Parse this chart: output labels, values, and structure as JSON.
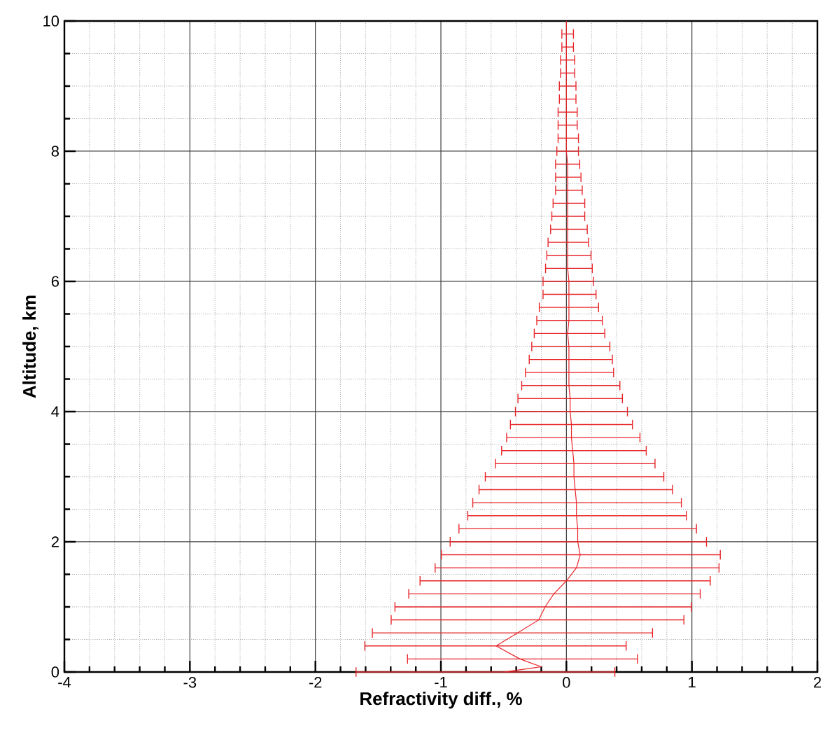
{
  "chart_data": {
    "type": "line",
    "xlabel": "Refractivity diff., %",
    "ylabel": "Altitude, km",
    "xlim": [
      -4,
      2
    ],
    "ylim": [
      0,
      10
    ],
    "xticks": [
      -4,
      -3,
      -2,
      -1,
      0,
      1,
      2
    ],
    "yticks": [
      0,
      2,
      4,
      6,
      8,
      10
    ],
    "grid": true,
    "marker": "none",
    "line_style": "solid",
    "series": [
      {
        "color": "#e8262a",
        "x": [
          -0.49,
          -0.2,
          -0.37,
          -0.56,
          -0.39,
          -0.22,
          -0.17,
          -0.1,
          0.0,
          0.08,
          0.11,
          0.09,
          0.09,
          0.08,
          0.08,
          0.07,
          0.06,
          0.06,
          0.05,
          0.04,
          0.04,
          0.03,
          0.03,
          0.02,
          0.02,
          0.02,
          0.02,
          0.01,
          0.02,
          0.02,
          0.02,
          0.02,
          0.01,
          0.01,
          0.01,
          0.01,
          0.01,
          0.01,
          0.01,
          0.01,
          0.01,
          0.0,
          0.0,
          0.0,
          0.0,
          0.0,
          0.0,
          0.0,
          0.0,
          0.0,
          0.0,
          0.0
        ],
        "values": [
          0,
          0.08,
          0.2,
          0.4,
          0.6,
          0.8,
          1.0,
          1.2,
          1.4,
          1.6,
          1.8,
          2.0,
          2.2,
          2.4,
          2.6,
          2.8,
          3.0,
          3.2,
          3.4,
          3.6,
          3.8,
          4.0,
          4.2,
          4.4,
          4.6,
          4.8,
          5.0,
          5.2,
          5.4,
          5.6,
          5.8,
          6.0,
          6.2,
          6.4,
          6.6,
          6.8,
          7.0,
          7.2,
          7.4,
          7.6,
          7.8,
          8.0,
          8.2,
          8.4,
          8.6,
          8.8,
          9.0,
          9.2,
          9.4,
          9.6,
          9.8,
          10.0
        ],
        "xerrors": [
          [
            -1.68,
            0.39
          ],
          null,
          [
            -1.27,
            0.57
          ],
          [
            -1.61,
            0.48
          ],
          [
            -1.55,
            0.69
          ],
          [
            -1.4,
            0.94
          ],
          [
            -1.37,
            1.0
          ],
          [
            -1.26,
            1.07
          ],
          [
            -1.17,
            1.15
          ],
          [
            -1.05,
            1.22
          ],
          [
            -1.0,
            1.23
          ],
          [
            -0.93,
            1.12
          ],
          [
            -0.86,
            1.04
          ],
          [
            -0.79,
            0.96
          ],
          [
            -0.75,
            0.92
          ],
          [
            -0.7,
            0.85
          ],
          [
            -0.65,
            0.78
          ],
          [
            -0.57,
            0.71
          ],
          [
            -0.52,
            0.64
          ],
          [
            -0.48,
            0.59
          ],
          [
            -0.45,
            0.53
          ],
          [
            -0.41,
            0.49
          ],
          [
            -0.39,
            0.45
          ],
          [
            -0.36,
            0.43
          ],
          [
            -0.33,
            0.38
          ],
          [
            -0.3,
            0.37
          ],
          [
            -0.28,
            0.35
          ],
          [
            -0.26,
            0.31
          ],
          [
            -0.24,
            0.29
          ],
          [
            -0.22,
            0.26
          ],
          [
            -0.19,
            0.24
          ],
          [
            -0.19,
            0.22
          ],
          [
            -0.17,
            0.21
          ],
          [
            -0.16,
            0.2
          ],
          [
            -0.15,
            0.18
          ],
          [
            -0.13,
            0.17
          ],
          [
            -0.12,
            0.15
          ],
          [
            -0.11,
            0.15
          ],
          [
            -0.09,
            0.13
          ],
          [
            -0.09,
            0.12
          ],
          [
            -0.09,
            0.11
          ],
          [
            -0.08,
            0.1
          ],
          [
            -0.07,
            0.1
          ],
          [
            -0.07,
            0.09
          ],
          [
            -0.07,
            0.09
          ],
          [
            -0.06,
            0.08
          ],
          [
            -0.06,
            0.08
          ],
          [
            -0.05,
            0.07
          ],
          [
            -0.05,
            0.07
          ],
          [
            -0.04,
            0.06
          ],
          [
            -0.04,
            0.06
          ],
          null
        ]
      }
    ]
  }
}
